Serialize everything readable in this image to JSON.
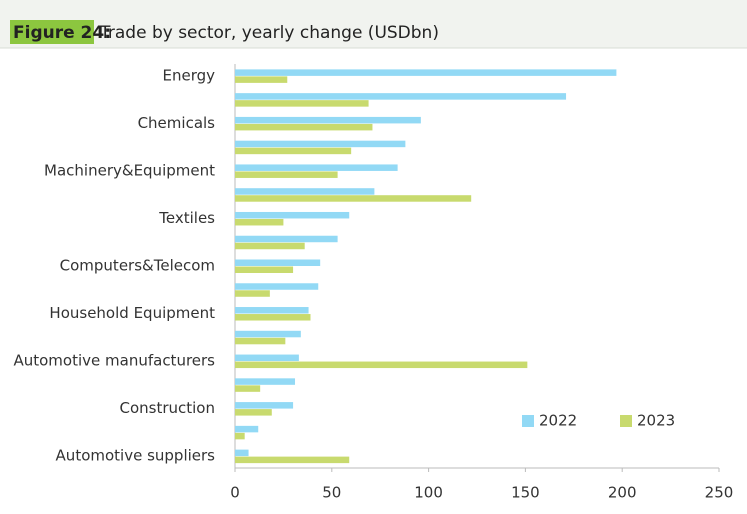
{
  "chart_data": {
    "type": "hbar",
    "figure_label": "Figure 24:",
    "title": "Trade by sector, yearly change (USDbn)",
    "categories": [
      "Energy",
      null,
      "Chemicals",
      null,
      "Machinery&Equipment",
      null,
      "Textiles",
      null,
      "Computers&Telecom",
      null,
      "Household Equipment",
      null,
      "Automotive manufacturers",
      null,
      "Construction",
      null,
      "Automotive suppliers"
    ],
    "series": [
      {
        "name": "2022",
        "color": "#92d9f5",
        "values": [
          197,
          171,
          96,
          88,
          84,
          72,
          59,
          53,
          44,
          43,
          38,
          34,
          33,
          31,
          30,
          12,
          7
        ]
      },
      {
        "name": "2023",
        "color": "#c8da6e",
        "values": [
          27,
          69,
          71,
          60,
          53,
          122,
          25,
          36,
          30,
          18,
          39,
          26,
          151,
          13,
          19,
          5,
          59
        ]
      }
    ],
    "xlim": [
      0,
      250
    ],
    "xticks": [
      0,
      50,
      100,
      150,
      200,
      250
    ],
    "legend": "lower right"
  }
}
